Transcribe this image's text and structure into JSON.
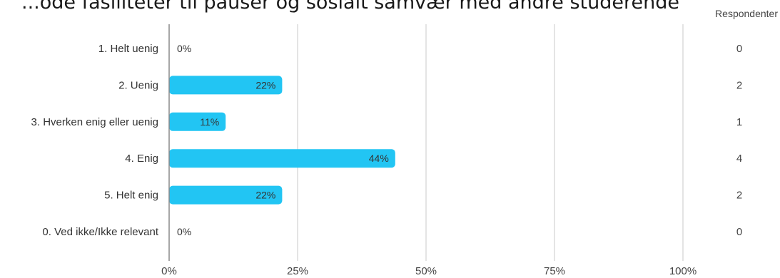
{
  "chart_data": {
    "type": "bar",
    "orientation": "horizontal",
    "title": "...ode fasiliteter til pauser og sosialt samvær med andre studerende",
    "categories": [
      "1. Helt uenig",
      "2. Uenig",
      "3. Hverken enig eller uenig",
      "4. Enig",
      "5. Helt enig",
      "0. Ved ikke/Ikke relevant"
    ],
    "values": [
      0,
      22,
      11,
      44,
      22,
      0
    ],
    "value_labels": [
      "0%",
      "22%",
      "11%",
      "44%",
      "22%",
      "0%"
    ],
    "counts_header": "Respondenter",
    "counts": [
      "0",
      "2",
      "1",
      "4",
      "2",
      "0"
    ],
    "xlim": [
      0,
      100
    ],
    "x_ticks": [
      0,
      25,
      50,
      75,
      100
    ],
    "x_tick_labels": [
      "0%",
      "25%",
      "50%",
      "75%",
      "100%"
    ],
    "grid": true,
    "bar_color": "#22c5f3"
  }
}
